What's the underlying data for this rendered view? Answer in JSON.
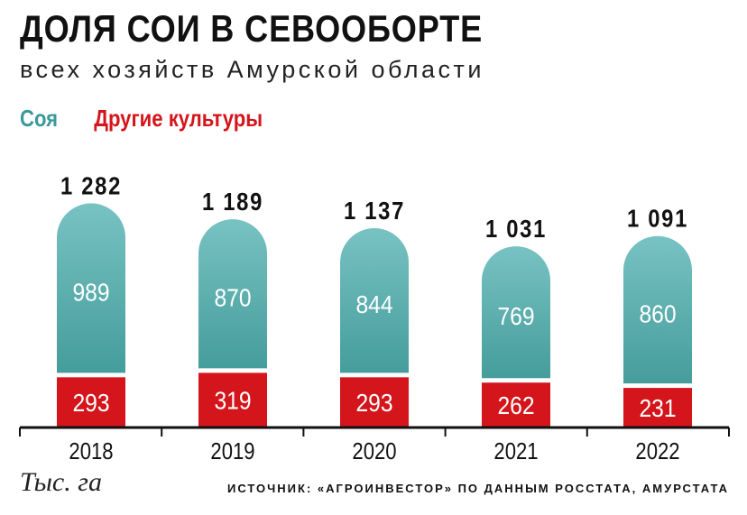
{
  "chart_data": {
    "type": "bar",
    "stacked": true,
    "title": "ДОЛЯ СОИ В СЕВООБОРТЕ",
    "subtitle": "всех хозяйств Амурской области",
    "unit": "Тыс. га",
    "source": "ИСТОЧНИК: «АГРОИНВЕСТОР» ПО ДАННЫМ РОССТАТА, АМУРСТАТА",
    "categories": [
      "2018",
      "2019",
      "2020",
      "2021",
      "2022"
    ],
    "series": [
      {
        "name": "Соя",
        "color": "#5aabab",
        "values": [
          989,
          870,
          844,
          769,
          860
        ]
      },
      {
        "name": "Другие культуры",
        "color": "#d4151b",
        "values": [
          293,
          319,
          293,
          262,
          231
        ]
      }
    ],
    "totals": [
      "1 282",
      "1 189",
      "1 137",
      "1 031",
      "1 091"
    ],
    "legend_position": "top-left",
    "grid": false
  }
}
